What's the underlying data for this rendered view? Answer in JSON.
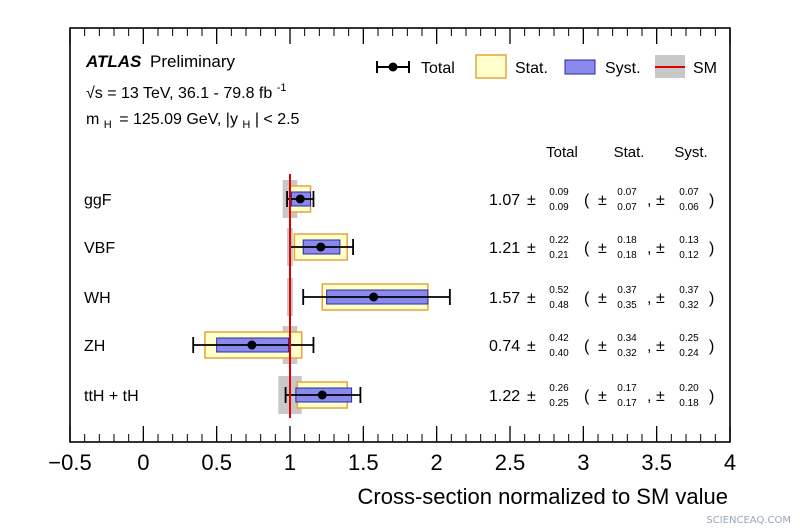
{
  "colors": {
    "stat_fill": "#ffffcc",
    "stat_edge": "#e8a33a",
    "syst_fill": "#8a8aee",
    "syst_edge": "#2a2a9a",
    "sm_line": "#dd0000",
    "sm_band": "#c8c8c8",
    "point": "#000000"
  },
  "header": {
    "atlas": "ATLAS",
    "preliminary": "Preliminary",
    "energy_sqrt": "√s",
    "energy_rest": "= 13 TeV, 36.1 - 79.8 fb",
    "energy_sup": "-1",
    "mass_m": "m",
    "mass_sub_h": "H",
    "mass_mid": "= 125.09 GeV, |y",
    "mass_sub_h2": "H",
    "mass_end": "| < 2.5"
  },
  "legend": [
    {
      "key": "total",
      "label": "Total"
    },
    {
      "key": "stat",
      "label": "Stat."
    },
    {
      "key": "syst",
      "label": "Syst."
    },
    {
      "key": "sm",
      "label": "SM"
    }
  ],
  "columns": {
    "total": "Total",
    "stat": "Stat.",
    "syst": "Syst."
  },
  "watermark": "SCIENCEAQ.COM",
  "chart_data": {
    "type": "scatter",
    "xlabel": "Cross-section normalized to SM value",
    "ylabel": "",
    "xlim": [
      -0.5,
      4.0
    ],
    "x_ticks": [
      -0.5,
      0,
      0.5,
      1,
      1.5,
      2,
      2.5,
      3,
      3.5,
      4
    ],
    "x_tick_labels": [
      "−0.5",
      "0",
      "0.5",
      "1",
      "1.5",
      "2",
      "2.5",
      "3",
      "3.5",
      "4"
    ],
    "sm_value": 1.0,
    "series": [
      {
        "name": "ggF",
        "value": 1.07,
        "value_label": "1.07",
        "total": {
          "up": "0.09",
          "down": "0.09"
        },
        "stat": {
          "up": "0.07",
          "down": "0.07"
        },
        "syst": {
          "up": "0.07",
          "down": "0.06"
        },
        "sm_unc": 0.05
      },
      {
        "name": "VBF",
        "value": 1.21,
        "value_label": "1.21",
        "total": {
          "up": "0.22",
          "down": "0.21"
        },
        "stat": {
          "up": "0.18",
          "down": "0.18"
        },
        "syst": {
          "up": "0.13",
          "down": "0.12"
        },
        "sm_unc": 0.02
      },
      {
        "name": "WH",
        "value": 1.57,
        "value_label": "1.57",
        "total": {
          "up": "0.52",
          "down": "0.48"
        },
        "stat": {
          "up": "0.37",
          "down": "0.35"
        },
        "syst": {
          "up": "0.37",
          "down": "0.32"
        },
        "sm_unc": 0.02
      },
      {
        "name": "ZH",
        "value": 0.74,
        "value_label": "0.74",
        "total": {
          "up": "0.42",
          "down": "0.40"
        },
        "stat": {
          "up": "0.34",
          "down": "0.32"
        },
        "syst": {
          "up": "0.25",
          "down": "0.24"
        },
        "sm_unc": 0.05
      },
      {
        "name": "ttH + tH",
        "value": 1.22,
        "value_label": "1.22",
        "total": {
          "up": "0.26",
          "down": "0.25"
        },
        "stat": {
          "up": "0.17",
          "down": "0.17"
        },
        "syst": {
          "up": "0.20",
          "down": "0.18"
        },
        "sm_unc": 0.08
      }
    ]
  }
}
